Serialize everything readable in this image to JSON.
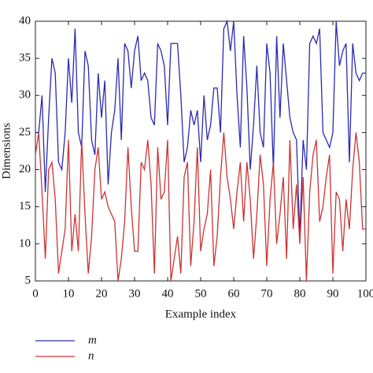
{
  "chart_data": {
    "type": "line",
    "x_label": "Example index",
    "y_label": "Dimensions",
    "x": [
      0,
      1,
      2,
      3,
      4,
      5,
      6,
      7,
      8,
      9,
      10,
      11,
      12,
      13,
      14,
      15,
      16,
      17,
      18,
      19,
      20,
      21,
      22,
      23,
      24,
      25,
      26,
      27,
      28,
      29,
      30,
      31,
      32,
      33,
      34,
      35,
      36,
      37,
      38,
      39,
      40,
      41,
      42,
      43,
      44,
      45,
      46,
      47,
      48,
      49,
      50,
      51,
      52,
      53,
      54,
      55,
      56,
      57,
      58,
      59,
      60,
      61,
      62,
      63,
      64,
      65,
      66,
      67,
      68,
      69,
      70,
      71,
      72,
      73,
      74,
      75,
      76,
      77,
      78,
      79,
      80,
      81,
      82,
      83,
      84,
      85,
      86,
      87,
      88,
      89,
      90,
      91,
      92,
      93,
      94,
      95,
      96,
      97,
      98,
      99,
      100
    ],
    "series": [
      {
        "name": "m",
        "color": "#2a2ab4",
        "values": [
          25,
          25,
          30,
          17,
          27,
          35,
          33,
          21,
          20,
          25,
          35,
          29,
          39,
          25,
          23,
          36,
          34,
          24,
          22,
          33,
          27,
          32,
          18,
          25,
          28,
          35,
          24,
          37,
          36,
          31,
          36,
          38,
          32,
          33,
          32,
          27,
          26,
          37,
          36,
          34,
          26,
          37,
          37,
          37,
          30,
          21,
          23,
          28,
          26,
          28,
          21,
          30,
          24,
          26,
          31,
          31,
          25,
          39,
          40,
          36,
          40,
          30,
          23,
          38,
          31,
          20,
          26,
          34,
          25,
          23,
          37,
          33,
          20,
          38,
          27,
          37,
          32,
          27,
          25,
          24,
          11,
          24,
          20,
          37,
          38,
          37,
          39,
          25,
          24,
          23,
          25,
          40,
          34,
          36,
          37,
          21,
          37,
          33,
          32,
          33,
          33
        ]
      },
      {
        "name": "n",
        "color": "#cc3333",
        "values": [
          22,
          25,
          17,
          8,
          20,
          21,
          16,
          6,
          9,
          12,
          24,
          9,
          14,
          9,
          24,
          14,
          6,
          11,
          20,
          23,
          16,
          17,
          15,
          14,
          13,
          5,
          8,
          13,
          23,
          15,
          9,
          9,
          21,
          20,
          24,
          18,
          6,
          23,
          16,
          17,
          24,
          5,
          8,
          11,
          6,
          19,
          21,
          7,
          13,
          23,
          9,
          12,
          14,
          20,
          7,
          11,
          19,
          25,
          19,
          16,
          12,
          17,
          21,
          13,
          21,
          16,
          8,
          14,
          22,
          18,
          7,
          16,
          21,
          10,
          14,
          19,
          8,
          24,
          12,
          18,
          10,
          19,
          5,
          17,
          22,
          24,
          13,
          15,
          19,
          22,
          6,
          17,
          16,
          9,
          16,
          12,
          20,
          25,
          21,
          12,
          12
        ]
      }
    ],
    "xlim": [
      0,
      100
    ],
    "xticks": [
      0,
      10,
      20,
      30,
      40,
      50,
      60,
      70,
      80,
      90,
      100
    ],
    "ylim": [
      5,
      40
    ],
    "yticks": [
      5,
      10,
      15,
      20,
      25,
      30,
      35,
      40
    ]
  }
}
